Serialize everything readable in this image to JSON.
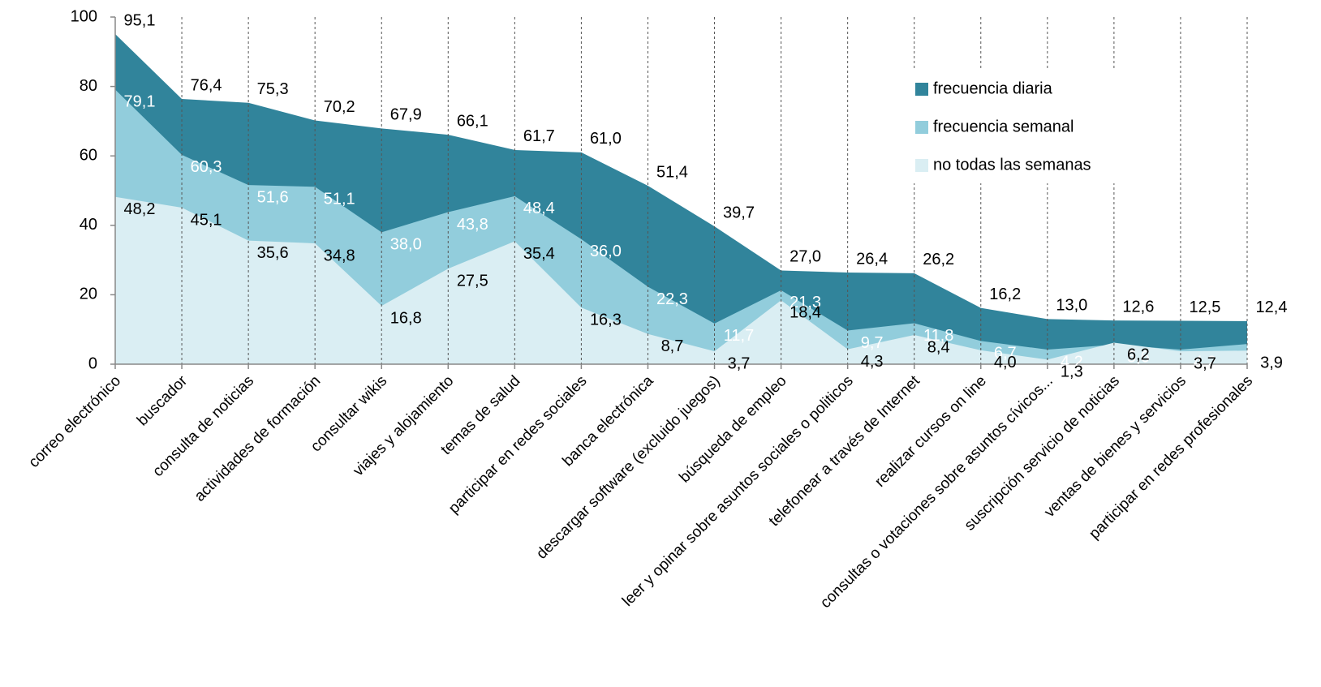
{
  "chart_data": {
    "type": "area",
    "categories": [
      "correo electrónico",
      "buscador",
      "consulta de noticias",
      "actividades de formación",
      "consultar wikis",
      "viajes y alojamiento",
      "temas de salud",
      "participar en redes sociales",
      "banca electrónica",
      "descargar software (excluido juegos)",
      "búsqueda de empleo",
      "leer y opinar sobre asuntos sociales o politicos",
      "telefonear a través de Internet",
      "realizar cursos on line",
      "consultas o votaciones sobre asuntos cívicos...",
      "suscripción servicio de noticias",
      "ventas de bienes y servicios",
      "participar en redes profesionales"
    ],
    "series": [
      {
        "name": "frecuencia diaria",
        "color": "#31849b",
        "values": [
          95.1,
          76.4,
          75.3,
          70.2,
          67.9,
          66.1,
          61.7,
          61.0,
          51.4,
          39.7,
          27.0,
          26.4,
          26.2,
          16.2,
          13.0,
          12.6,
          12.5,
          12.4
        ],
        "value_labels": [
          "95,1",
          "76,4",
          "75,3",
          "70,2",
          "67,9",
          "66,1",
          "61,7",
          "61,0",
          "51,4",
          "39,7",
          "27,0",
          "26,4",
          "26,2",
          "16,2",
          "13,0",
          "12,6",
          "12,5",
          "12,4"
        ]
      },
      {
        "name": "frecuencia semanal",
        "color": "#92cddc",
        "values": [
          79.1,
          60.3,
          51.6,
          51.1,
          38.0,
          43.8,
          48.4,
          36.0,
          22.3,
          11.7,
          21.3,
          9.7,
          11.8,
          6.7,
          4.2,
          5.6,
          4.2,
          5.8
        ],
        "value_labels": [
          "79,1",
          "60,3",
          "51,6",
          "51,1",
          "38,0",
          "43,8",
          "48,4",
          "36,0",
          "22,3",
          "11,7",
          "21,3",
          "9,7",
          "11,8",
          "6,7",
          "4,2",
          "5,6",
          "4,2",
          "5,8"
        ]
      },
      {
        "name": "no todas las semanas",
        "color": "#daeef3",
        "values": [
          48.2,
          45.1,
          35.6,
          34.8,
          16.8,
          27.5,
          35.4,
          16.3,
          8.7,
          3.7,
          18.4,
          4.3,
          8.4,
          4.0,
          1.3,
          6.2,
          3.7,
          3.9
        ],
        "value_labels": [
          "48,2",
          "45,1",
          "35,6",
          "34,8",
          "16,8",
          "27,5",
          "35,4",
          "16,3",
          "8,7",
          "3,7",
          "18,4",
          "4,3",
          "8,4",
          "4,0",
          "1,3",
          "6,2",
          "3,7",
          "3,9"
        ]
      }
    ],
    "ylim": [
      0,
      100
    ],
    "yticks": [
      0,
      20,
      40,
      60,
      80,
      100
    ],
    "legend": "upper right"
  }
}
